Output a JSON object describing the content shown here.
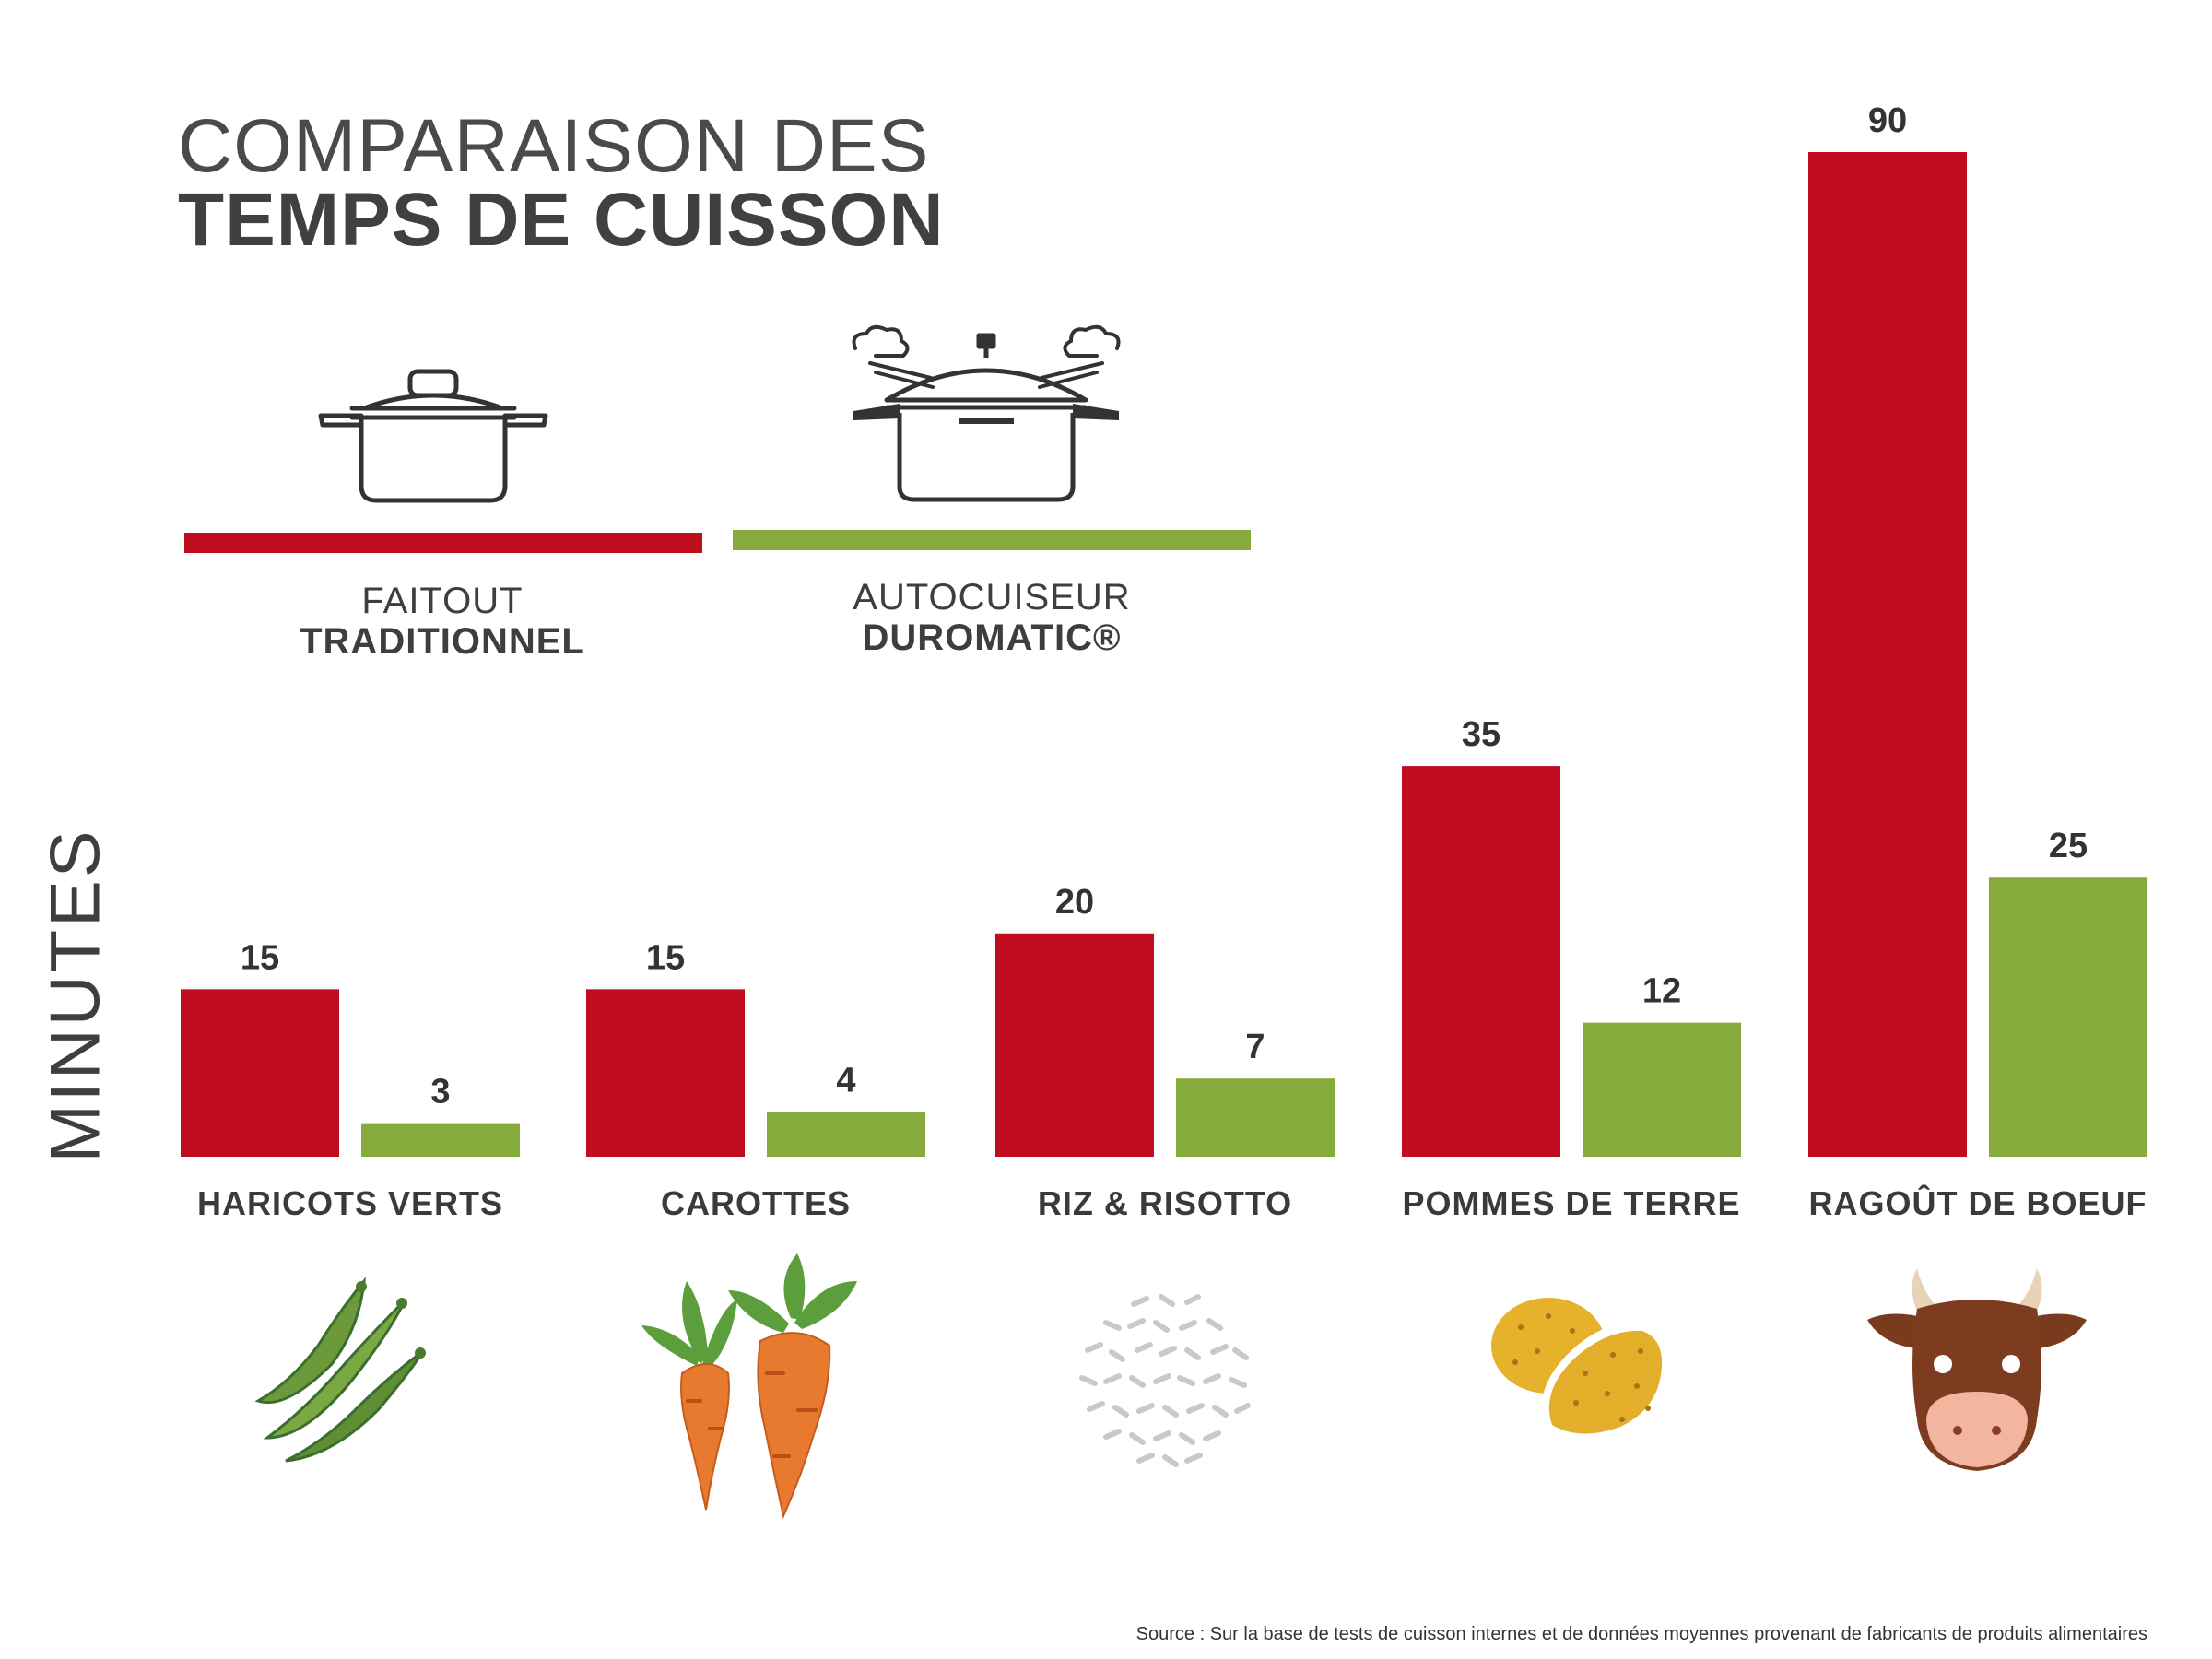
{
  "title": {
    "line1": "COMPARAISON DES",
    "line2": "TEMPS DE CUISSON"
  },
  "legend": [
    {
      "line1": "FAITOUT",
      "line2": "TRADITIONNEL",
      "color": "#c00d1e"
    },
    {
      "line1": "AUTOCUISEUR",
      "line2": "DUROMATIC®",
      "color": "#84ab3b"
    }
  ],
  "source": "Source : Sur la base de tests de cuisson internes et de données moyennes provenant de fabricants de produits alimentaires",
  "chart_data": {
    "type": "bar",
    "title": "COMPARAISON DES TEMPS DE CUISSON",
    "xlabel": "",
    "ylabel": "MINUTES",
    "categories": [
      "HARICOTS VERTS",
      "CAROTTES",
      "RIZ & RISOTTO",
      "POMMES DE TERRE",
      "RAGOÛT DE BOEUF"
    ],
    "series": [
      {
        "name": "FAITOUT TRADITIONNEL",
        "values": [
          15,
          15,
          20,
          35,
          90
        ],
        "color": "#c00d1e"
      },
      {
        "name": "AUTOCUISEUR DUROMATIC®",
        "values": [
          3,
          4,
          7,
          12,
          25
        ],
        "color": "#84ab3b"
      }
    ],
    "ylim": [
      0,
      90
    ],
    "grid": false,
    "legend": "top-left",
    "icons": [
      "green-beans-icon",
      "carrots-icon",
      "rice-icon",
      "potatoes-icon",
      "cow-icon"
    ]
  }
}
